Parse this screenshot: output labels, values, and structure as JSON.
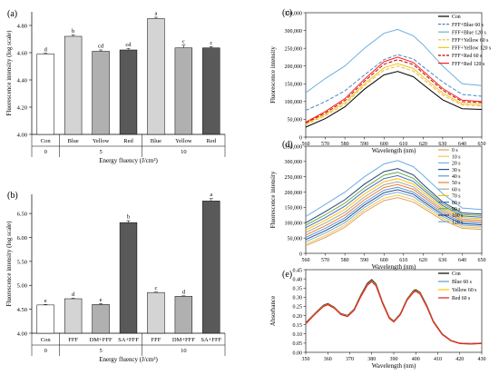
{
  "chart_data": [
    {
      "panel": "(a)",
      "type": "bar",
      "ylabel": "Fluorescence intensity (log scale)",
      "xlabel": "Energy fluency (J/cm²)",
      "ylim": [
        4.0,
        4.9
      ],
      "yticks": [
        "4.00",
        "4.20",
        "4.40",
        "4.60",
        "4.80"
      ],
      "categories": [
        "Con",
        "Blue",
        "Yellow",
        "Red",
        "Blue",
        "Yellow",
        "Red"
      ],
      "groups": [
        {
          "label": "0",
          "span": [
            0,
            0
          ]
        },
        {
          "label": "5",
          "span": [
            1,
            3
          ]
        },
        {
          "label": "10",
          "span": [
            4,
            6
          ]
        }
      ],
      "values": [
        4.59,
        4.72,
        4.61,
        4.62,
        4.85,
        4.635,
        4.635
      ],
      "errors": [
        0.005,
        0.01,
        0.01,
        0.01,
        0.01,
        0.02,
        0.01
      ],
      "letters": [
        "d",
        "b",
        "cd",
        "cd",
        "a",
        "c",
        "c"
      ],
      "colors": [
        "#ffffff",
        "#d4d4d4",
        "#b0b0b0",
        "#595959",
        "#d4d4d4",
        "#b0b0b0",
        "#595959"
      ]
    },
    {
      "panel": "(b)",
      "type": "bar",
      "ylabel": "Fluorescence intensity (log scale)",
      "xlabel": "Energy fluency (J/cm²)",
      "ylim": [
        4.0,
        6.9
      ],
      "yticks": [
        "4.00",
        "4.50",
        "5.00",
        "5.50",
        "6.00",
        "6.50"
      ],
      "categories": [
        "Con",
        "FFF",
        "DM+FFF",
        "SA+FFF",
        "FFF",
        "DM+FFF",
        "SA+FFF"
      ],
      "groups": [
        {
          "label": "0",
          "span": [
            0,
            0
          ]
        },
        {
          "label": "5",
          "span": [
            1,
            3
          ]
        },
        {
          "label": "10",
          "span": [
            4,
            6
          ]
        }
      ],
      "values": [
        4.59,
        4.72,
        4.6,
        6.31,
        4.85,
        4.77,
        6.76
      ],
      "errors": [
        0.01,
        0.01,
        0.02,
        0.04,
        0.01,
        0.01,
        0.05
      ],
      "letters": [
        "e",
        "d",
        "e",
        "b",
        "c",
        "d",
        "a"
      ],
      "colors": [
        "#ffffff",
        "#d4d4d4",
        "#b0b0b0",
        "#595959",
        "#d4d4d4",
        "#b0b0b0",
        "#595959"
      ]
    },
    {
      "panel": "(c)",
      "type": "line",
      "ylabel": "Fluorescence intensity",
      "xlabel": "Wavelength (nm)",
      "xlim": [
        560,
        650
      ],
      "ylim": [
        0,
        350000
      ],
      "xticks": [
        "560",
        "570",
        "580",
        "590",
        "600",
        "610",
        "620",
        "630",
        "640",
        "650"
      ],
      "yticks": [
        "0",
        "50,000",
        "100,000",
        "150,000",
        "200,000",
        "250,000",
        "300,000",
        "350,000"
      ],
      "x": [
        560,
        570,
        580,
        590,
        600,
        607,
        615,
        620,
        630,
        640,
        650
      ],
      "series": [
        {
          "name": "Con",
          "color": "#000000",
          "dash": "",
          "values": [
            28000,
            52000,
            85000,
            135000,
            175000,
            185000,
            170000,
            148000,
            105000,
            80000,
            78000
          ]
        },
        {
          "name": "FFF+Blue 60 s",
          "color": "#4a86c8",
          "dash": "4,2",
          "values": [
            75000,
            100000,
            130000,
            175000,
            218000,
            232000,
            220000,
            198000,
            155000,
            120000,
            115000
          ]
        },
        {
          "name": "FFF+Blue 120 s",
          "color": "#6aaee0",
          "dash": "",
          "values": [
            125000,
            165000,
            200000,
            250000,
            292000,
            303000,
            285000,
            260000,
            200000,
            150000,
            145000
          ]
        },
        {
          "name": "FFF+Yellow 60 s",
          "color": "#f2b632",
          "dash": "4,2",
          "values": [
            35000,
            60000,
            92000,
            145000,
            188000,
            200000,
            186000,
            163000,
            118000,
            90000,
            88000
          ]
        },
        {
          "name": "FFF+Yellow 120 s",
          "color": "#f0c419",
          "dash": "",
          "values": [
            38000,
            64000,
            97000,
            150000,
            195000,
            207000,
            193000,
            170000,
            124000,
            94000,
            92000
          ]
        },
        {
          "name": "FFF+Red 60 s",
          "color": "#c00000",
          "dash": "4,2",
          "values": [
            40000,
            68000,
            103000,
            157000,
            205000,
            218000,
            204000,
            180000,
            132000,
            100000,
            97000
          ]
        },
        {
          "name": "FFF+Red 120 s",
          "color": "#ff1a1a",
          "dash": "",
          "values": [
            42000,
            72000,
            108000,
            163000,
            212000,
            225000,
            210000,
            186000,
            137000,
            104000,
            100000
          ]
        }
      ]
    },
    {
      "panel": "(d)",
      "type": "line",
      "ylabel": "Fluorescence intensity",
      "xlabel": "Wavelength (nm)",
      "xlim": [
        560,
        650
      ],
      "ylim": [
        0,
        350000
      ],
      "xticks": [
        "560",
        "570",
        "580",
        "590",
        "600",
        "610",
        "620",
        "630",
        "640",
        "650"
      ],
      "yticks": [
        "0",
        "50,000",
        "100,000",
        "150,000",
        "200,000",
        "250,000",
        "300,000",
        "350,000"
      ],
      "x": [
        560,
        570,
        580,
        590,
        600,
        607,
        615,
        620,
        630,
        640,
        650
      ],
      "series": [
        {
          "name": "0 s",
          "color": "#e0a060",
          "values": [
            25000,
            52000,
            85000,
            135000,
            172000,
            182000,
            168000,
            148000,
            108000,
            82000,
            78000
          ]
        },
        {
          "name": "10 s",
          "color": "#f3c84c",
          "values": [
            30000,
            58000,
            92000,
            142000,
            180000,
            190000,
            176000,
            155000,
            114000,
            87000,
            83000
          ]
        },
        {
          "name": "20 s",
          "color": "#7ab0d8",
          "values": [
            38000,
            66000,
            100000,
            150000,
            190000,
            200000,
            185000,
            163000,
            120000,
            92000,
            88000
          ]
        },
        {
          "name": "30 s",
          "color": "#2b4f8a",
          "values": [
            45000,
            74000,
            108000,
            158000,
            198000,
            208000,
            193000,
            170000,
            126000,
            97000,
            93000
          ]
        },
        {
          "name": "40 s",
          "color": "#5b9bd5",
          "values": [
            52000,
            82000,
            116000,
            166000,
            206000,
            216000,
            200000,
            177000,
            132000,
            102000,
            98000
          ]
        },
        {
          "name": "50 s",
          "color": "#ed7d31",
          "values": [
            60000,
            90000,
            125000,
            175000,
            215000,
            225000,
            209000,
            185000,
            138000,
            107000,
            103000
          ]
        },
        {
          "name": "60 s",
          "color": "#a5a5a5",
          "values": [
            68000,
            99000,
            134000,
            184000,
            224000,
            234000,
            217000,
            192000,
            144000,
            112000,
            108000
          ]
        },
        {
          "name": "70 s",
          "color": "#ffc000",
          "values": [
            76000,
            108000,
            144000,
            194000,
            234000,
            244000,
            226000,
            200000,
            150000,
            117000,
            113000
          ]
        },
        {
          "name": "80 s",
          "color": "#4472c4",
          "values": [
            84000,
            117000,
            154000,
            204000,
            244000,
            254000,
            235000,
            208000,
            156000,
            122000,
            118000
          ]
        },
        {
          "name": "90 s",
          "color": "#70ad47",
          "values": [
            92000,
            126000,
            164000,
            214000,
            255000,
            265000,
            245000,
            216000,
            162000,
            127000,
            123000
          ]
        },
        {
          "name": "100 s",
          "color": "#264478",
          "values": [
            100000,
            136000,
            175000,
            226000,
            267000,
            277000,
            256000,
            225000,
            168000,
            132000,
            128000
          ]
        },
        {
          "name": "120 s",
          "color": "#6aaee0",
          "values": [
            120000,
            160000,
            200000,
            250000,
            292000,
            303000,
            283000,
            255000,
            195000,
            148000,
            143000
          ]
        }
      ]
    },
    {
      "panel": "(e)",
      "type": "line",
      "ylabel": "Absorbance",
      "xlabel": "Wavelength (nm)",
      "xlim": [
        350,
        430
      ],
      "ylim": [
        0,
        0.45
      ],
      "xticks": [
        "350",
        "360",
        "370",
        "380",
        "390",
        "400",
        "410",
        "420",
        "430"
      ],
      "yticks": [
        "0.00",
        "0.05",
        "0.10",
        "0.15",
        "0.20",
        "0.25",
        "0.30",
        "0.35",
        "0.40",
        "0.45"
      ],
      "x": [
        350,
        354,
        358,
        360,
        363,
        366,
        369,
        372,
        375,
        378,
        380,
        382,
        385,
        388,
        390,
        393,
        396,
        399,
        400,
        402,
        405,
        408,
        412,
        416,
        420,
        425,
        430
      ],
      "series": [
        {
          "name": "Con",
          "color": "#000000",
          "values": [
            0.16,
            0.21,
            0.255,
            0.265,
            0.245,
            0.21,
            0.2,
            0.235,
            0.31,
            0.375,
            0.395,
            0.37,
            0.27,
            0.19,
            0.17,
            0.21,
            0.29,
            0.335,
            0.34,
            0.325,
            0.255,
            0.17,
            0.1,
            0.065,
            0.05,
            0.047,
            0.05
          ]
        },
        {
          "name": "Blue 60 s",
          "color": "#5b9bd5",
          "values": [
            0.158,
            0.208,
            0.252,
            0.262,
            0.243,
            0.208,
            0.198,
            0.232,
            0.306,
            0.37,
            0.39,
            0.366,
            0.267,
            0.188,
            0.168,
            0.208,
            0.287,
            0.331,
            0.336,
            0.321,
            0.252,
            0.168,
            0.099,
            0.064,
            0.049,
            0.046,
            0.049
          ]
        },
        {
          "name": "Yellow 60 s",
          "color": "#ffc000",
          "values": [
            0.157,
            0.207,
            0.251,
            0.261,
            0.242,
            0.207,
            0.197,
            0.231,
            0.305,
            0.368,
            0.388,
            0.364,
            0.266,
            0.187,
            0.167,
            0.207,
            0.286,
            0.33,
            0.335,
            0.32,
            0.251,
            0.167,
            0.098,
            0.064,
            0.049,
            0.046,
            0.049
          ]
        },
        {
          "name": "Red 60 s",
          "color": "#e02020",
          "values": [
            0.155,
            0.205,
            0.249,
            0.259,
            0.24,
            0.205,
            0.195,
            0.229,
            0.302,
            0.365,
            0.385,
            0.361,
            0.263,
            0.185,
            0.165,
            0.205,
            0.283,
            0.327,
            0.332,
            0.317,
            0.248,
            0.165,
            0.097,
            0.063,
            0.048,
            0.045,
            0.048
          ]
        }
      ]
    }
  ]
}
